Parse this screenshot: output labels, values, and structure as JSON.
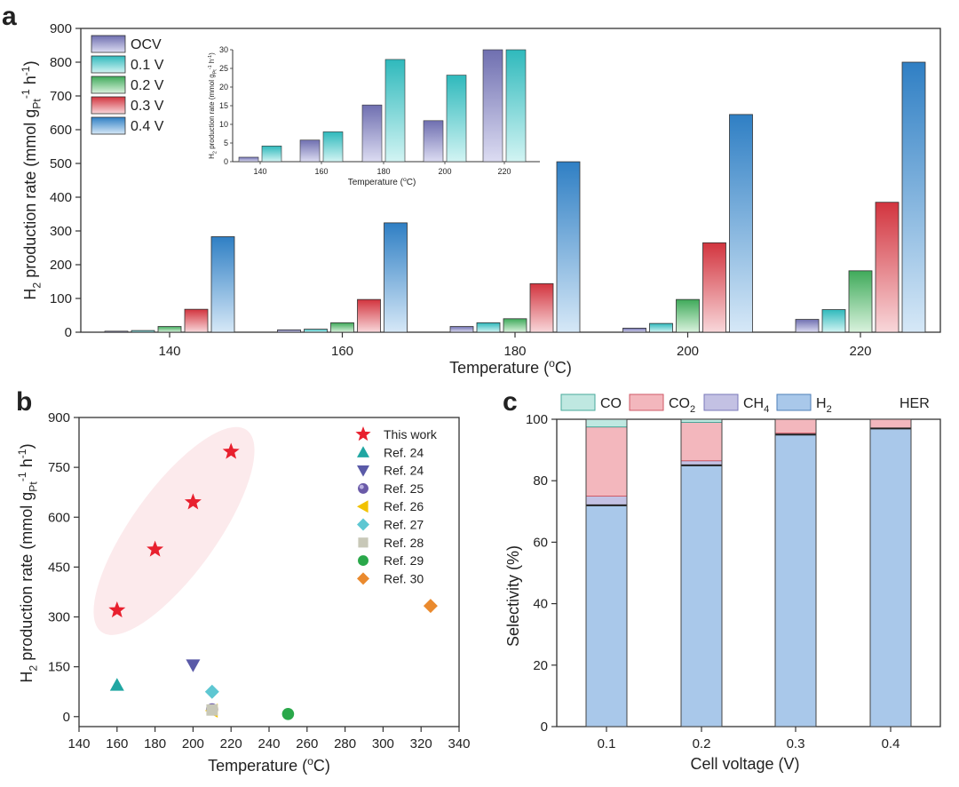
{
  "panel_letters": {
    "a": "a",
    "b": "b",
    "c": "c"
  },
  "chart_data": [
    {
      "id": "a",
      "type": "bar",
      "title": "",
      "xlabel": "Temperature (",
      "xlabel_unit": "oC)",
      "ylabel": "H2 production rate (mmol gPt-1 h-1)",
      "categories": [
        "140",
        "160",
        "180",
        "200",
        "220"
      ],
      "ylim": [
        0,
        900
      ],
      "yticks": [
        "0",
        "100",
        "200",
        "300",
        "400",
        "500",
        "600",
        "700",
        "800",
        "900"
      ],
      "legend_position": "top-left",
      "series": [
        {
          "name": "OCV",
          "values": [
            3,
            7,
            17,
            12,
            38
          ],
          "color": "#6f6fb0",
          "light": "#dcdcf2"
        },
        {
          "name": "0.1 V",
          "values": [
            5,
            9,
            28,
            26,
            67
          ],
          "color": "#2fb9bc",
          "light": "#d2f4f3"
        },
        {
          "name": "0.2 V",
          "values": [
            17,
            28,
            40,
            97,
            182
          ],
          "color": "#3faa5a",
          "light": "#d9f2dd"
        },
        {
          "name": "0.3 V",
          "values": [
            68,
            97,
            144,
            265,
            385
          ],
          "color": "#d2343e",
          "light": "#f8d7da"
        },
        {
          "name": "0.4 V",
          "values": [
            283,
            324,
            505,
            645,
            800
          ],
          "color": "#2f7fc4",
          "light": "#d6e8f7"
        }
      ],
      "inset": {
        "type": "bar",
        "xlabel": "Temperature (",
        "xlabel_unit": "oC)",
        "ylabel": "H2 production rate (mmol gPt-1 h-1)",
        "categories": [
          "140",
          "160",
          "180",
          "200",
          "220"
        ],
        "ylim": [
          0,
          30
        ],
        "yticks": [
          "0",
          "5",
          "10",
          "15",
          "20",
          "25",
          "30"
        ],
        "series": [
          {
            "name": "OCV",
            "values": [
              1.2,
              5.8,
              15.2,
              11.0,
              30.0
            ],
            "color": "#6f6fb0",
            "light": "#dcdcf2"
          },
          {
            "name": "0.1 V",
            "values": [
              4.2,
              8.0,
              27.4,
              23.2,
              30.0
            ],
            "color": "#2fb9bc",
            "light": "#d2f4f3"
          }
        ]
      }
    },
    {
      "id": "b",
      "type": "scatter",
      "xlabel": "Temperature (",
      "xlabel_unit": "oC)",
      "ylabel": "H2 production rate (mmol gPt-1 h-1)",
      "xlim": [
        140,
        340
      ],
      "ylim": [
        -30,
        900
      ],
      "xticks": [
        "140",
        "160",
        "180",
        "200",
        "220",
        "240",
        "260",
        "280",
        "300",
        "320",
        "340"
      ],
      "yticks": [
        "0",
        "150",
        "300",
        "450",
        "600",
        "750",
        "900"
      ],
      "legend_position": "top-right",
      "series": [
        {
          "name": "This work",
          "marker": "star",
          "color": "#e8202e",
          "points": [
            [
              160,
              320
            ],
            [
              180,
              503
            ],
            [
              200,
              645
            ],
            [
              220,
              797
            ]
          ]
        },
        {
          "name": "Ref. 24",
          "marker": "triangle-up",
          "color": "#20a6a2",
          "points": [
            [
              160,
              95
            ]
          ]
        },
        {
          "name": "Ref. 24",
          "marker": "triangle-down",
          "color": "#5a5aa8",
          "points": [
            [
              200,
              155
            ]
          ]
        },
        {
          "name": "Ref. 25",
          "marker": "circle-dark",
          "color": "#6a5aa8",
          "points": [
            [
              210,
              22
            ]
          ]
        },
        {
          "name": "Ref. 26",
          "marker": "triangle-left",
          "color": "#f2c200",
          "points": [
            [
              210,
              18
            ]
          ]
        },
        {
          "name": "Ref. 27",
          "marker": "diamond",
          "color": "#5ec7d2",
          "points": [
            [
              210,
              75
            ]
          ]
        },
        {
          "name": "Ref. 28",
          "marker": "square",
          "color": "#c8c8b8",
          "points": [
            [
              210,
              20
            ]
          ]
        },
        {
          "name": "Ref. 29",
          "marker": "circle",
          "color": "#2aa84a",
          "points": [
            [
              250,
              8
            ]
          ]
        },
        {
          "name": "Ref. 30",
          "marker": "diamond",
          "color": "#ea8a2e",
          "points": [
            [
              325,
              333
            ]
          ]
        }
      ],
      "ellipse_note": "highlight around This work points"
    },
    {
      "id": "c",
      "type": "bar",
      "stacked": true,
      "xlabel": "Cell voltage (V)",
      "ylabel": "Selectivity (%)",
      "categories": [
        "0.1",
        "0.2",
        "0.3",
        "0.4"
      ],
      "ylim": [
        0,
        100
      ],
      "yticks": [
        "0",
        "20",
        "40",
        "60",
        "80",
        "100"
      ],
      "legend_position": "top",
      "legend_extra": "HER",
      "series": [
        {
          "name": "H2",
          "values": [
            72,
            85,
            95,
            97
          ],
          "color": "#a9c8ea",
          "edge": "#4e7fb8"
        },
        {
          "name": "CH4",
          "values": [
            3,
            1.5,
            0.5,
            0
          ],
          "color": "#c3c1e3",
          "edge": "#7a78b8"
        },
        {
          "name": "CO2",
          "values": [
            22.5,
            12.5,
            4.5,
            3
          ],
          "color": "#f3b7bd",
          "edge": "#cf5a66"
        },
        {
          "name": "CO",
          "values": [
            2.5,
            1,
            0,
            0
          ],
          "color": "#bfe8e1",
          "edge": "#47a89a"
        }
      ]
    }
  ]
}
